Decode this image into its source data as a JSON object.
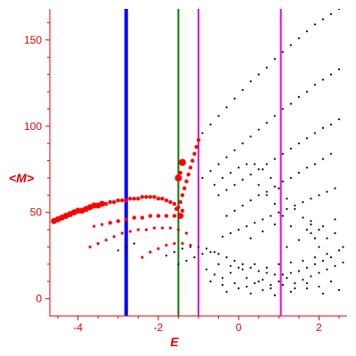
{
  "chart_data": {
    "type": "scatter",
    "xlabel": "E",
    "ylabel": "<M>",
    "xlim": [
      -4.7,
      2.7
    ],
    "ylim": [
      -10,
      168
    ],
    "x_ticks": [
      -4,
      -2,
      0,
      2
    ],
    "x_tick_labels": [
      "-4",
      "-2",
      "0",
      "2"
    ],
    "y_ticks": [
      0,
      50,
      100,
      150
    ],
    "y_tick_labels": [
      "0",
      "50",
      "100",
      "150"
    ],
    "grid": false,
    "colors": {
      "axis": "#e00000",
      "red_points": "#ff0000",
      "black_points": "#000000",
      "line_blue": "#0000ff",
      "line_green": "#008000",
      "line_magenta": "#e000e0"
    },
    "vertical_lines": [
      {
        "x": -2.8,
        "color": "#0000ff",
        "width": 4
      },
      {
        "x": -1.5,
        "color": "#008000",
        "width": 2
      },
      {
        "x": -1.0,
        "color": "#e000e0",
        "width": 2
      },
      {
        "x": 1.05,
        "color": "#e000e0",
        "width": 2
      }
    ],
    "red_series": [
      [
        -4.6,
        45
      ],
      [
        -4.5,
        46
      ],
      [
        -4.4,
        47
      ],
      [
        -4.3,
        48
      ],
      [
        -4.2,
        49
      ],
      [
        -4.1,
        50
      ],
      [
        -4.0,
        51
      ],
      [
        -3.9,
        51
      ],
      [
        -3.8,
        52
      ],
      [
        -3.7,
        53
      ],
      [
        -3.6,
        54
      ],
      [
        -3.5,
        54
      ],
      [
        -3.4,
        55
      ],
      [
        -3.3,
        55
      ],
      [
        -3.2,
        56
      ],
      [
        -3.1,
        56
      ],
      [
        -3.0,
        57
      ],
      [
        -2.9,
        57
      ],
      [
        -2.8,
        57
      ],
      [
        -2.7,
        58
      ],
      [
        -2.6,
        58
      ],
      [
        -2.5,
        58
      ],
      [
        -2.4,
        59
      ],
      [
        -2.3,
        59
      ],
      [
        -2.2,
        59
      ],
      [
        -2.1,
        59
      ],
      [
        -2.0,
        58
      ],
      [
        -1.9,
        58
      ],
      [
        -1.8,
        57
      ],
      [
        -1.7,
        56
      ],
      [
        -1.6,
        55
      ],
      [
        -1.5,
        53
      ],
      [
        -1.4,
        51
      ],
      [
        -3.6,
        42
      ],
      [
        -3.4,
        43
      ],
      [
        -3.2,
        44
      ],
      [
        -3.0,
        45
      ],
      [
        -2.8,
        46
      ],
      [
        -2.6,
        47
      ],
      [
        -2.4,
        47
      ],
      [
        -2.2,
        48
      ],
      [
        -2.0,
        48
      ],
      [
        -1.8,
        48
      ],
      [
        -1.6,
        48
      ],
      [
        -1.45,
        48
      ],
      [
        -3.7,
        30
      ],
      [
        -3.5,
        32
      ],
      [
        -3.3,
        34
      ],
      [
        -3.1,
        36
      ],
      [
        -2.9,
        38
      ],
      [
        -2.7,
        39
      ],
      [
        -2.5,
        40
      ],
      [
        -2.3,
        40
      ],
      [
        -2.1,
        41
      ],
      [
        -1.9,
        41
      ],
      [
        -1.7,
        41
      ],
      [
        -1.5,
        40
      ],
      [
        -1.3,
        38
      ],
      [
        -2.4,
        24
      ],
      [
        -2.2,
        27
      ],
      [
        -2.0,
        29
      ],
      [
        -1.8,
        31
      ],
      [
        -1.6,
        32
      ],
      [
        -1.4,
        32
      ],
      [
        -1.2,
        31
      ],
      [
        -1.55,
        52
      ],
      [
        -1.45,
        56
      ],
      [
        -1.4,
        60
      ],
      [
        -1.35,
        64
      ],
      [
        -1.3,
        68
      ],
      [
        -1.25,
        72
      ],
      [
        -1.2,
        76
      ],
      [
        -1.15,
        80
      ],
      [
        -1.1,
        84
      ],
      [
        -1.05,
        88
      ],
      [
        -1.0,
        92
      ],
      [
        -1.5,
        70
      ],
      [
        -1.4,
        79
      ],
      [
        -1.45,
        73
      ]
    ],
    "black_series": [
      [
        -0.9,
        96
      ],
      [
        -0.7,
        101
      ],
      [
        -0.5,
        106
      ],
      [
        -0.3,
        111
      ],
      [
        -0.1,
        116
      ],
      [
        0.1,
        121
      ],
      [
        0.3,
        126
      ],
      [
        0.5,
        130
      ],
      [
        0.7,
        134
      ],
      [
        0.9,
        139
      ],
      [
        1.1,
        143
      ],
      [
        1.3,
        147
      ],
      [
        1.5,
        151
      ],
      [
        1.7,
        155
      ],
      [
        1.9,
        159
      ],
      [
        2.1,
        162
      ],
      [
        2.3,
        165
      ],
      [
        2.5,
        168
      ],
      [
        -0.9,
        70
      ],
      [
        -0.7,
        74
      ],
      [
        -0.5,
        78
      ],
      [
        -0.3,
        82
      ],
      [
        -0.1,
        86
      ],
      [
        0.1,
        90
      ],
      [
        0.3,
        94
      ],
      [
        0.5,
        98
      ],
      [
        0.7,
        102
      ],
      [
        0.9,
        106
      ],
      [
        1.1,
        110
      ],
      [
        1.3,
        113
      ],
      [
        1.5,
        117
      ],
      [
        1.7,
        120
      ],
      [
        1.9,
        124
      ],
      [
        2.1,
        127
      ],
      [
        2.3,
        130
      ],
      [
        2.5,
        133
      ],
      [
        -0.5,
        60
      ],
      [
        -0.3,
        63
      ],
      [
        -0.1,
        66
      ],
      [
        0.1,
        69
      ],
      [
        0.3,
        72
      ],
      [
        0.5,
        75
      ],
      [
        0.7,
        78
      ],
      [
        0.9,
        81
      ],
      [
        1.1,
        84
      ],
      [
        1.3,
        87
      ],
      [
        1.5,
        90
      ],
      [
        1.7,
        93
      ],
      [
        1.9,
        96
      ],
      [
        2.1,
        99
      ],
      [
        2.3,
        101
      ],
      [
        2.5,
        104
      ],
      [
        -0.3,
        48
      ],
      [
        -0.1,
        51
      ],
      [
        0.1,
        54
      ],
      [
        0.3,
        57
      ],
      [
        0.5,
        60
      ],
      [
        0.7,
        62
      ],
      [
        0.9,
        65
      ],
      [
        1.1,
        68
      ],
      [
        1.3,
        70
      ],
      [
        1.5,
        73
      ],
      [
        1.7,
        76
      ],
      [
        1.9,
        78
      ],
      [
        2.1,
        81
      ],
      [
        2.3,
        84
      ],
      [
        -0.6,
        66
      ],
      [
        -0.4,
        70
      ],
      [
        -0.2,
        73
      ],
      [
        0.0,
        76
      ],
      [
        0.2,
        78
      ],
      [
        0.4,
        78
      ],
      [
        0.6,
        75
      ],
      [
        0.8,
        70
      ],
      [
        1.0,
        64
      ],
      [
        1.2,
        58
      ],
      [
        1.4,
        52
      ],
      [
        1.6,
        47
      ],
      [
        1.8,
        43
      ],
      [
        2.0,
        40
      ],
      [
        -0.4,
        36
      ],
      [
        -0.2,
        38
      ],
      [
        0.0,
        40
      ],
      [
        0.2,
        42
      ],
      [
        0.4,
        44
      ],
      [
        0.6,
        46
      ],
      [
        0.8,
        48
      ],
      [
        1.0,
        50
      ],
      [
        1.2,
        52
      ],
      [
        1.4,
        54
      ],
      [
        1.6,
        56
      ],
      [
        1.8,
        58
      ],
      [
        2.0,
        60
      ],
      [
        2.2,
        62
      ],
      [
        2.4,
        64
      ],
      [
        -1.5,
        20
      ],
      [
        -1.3,
        22
      ],
      [
        -1.1,
        24
      ],
      [
        -0.9,
        26
      ],
      [
        -0.7,
        27
      ],
      [
        -0.5,
        26
      ],
      [
        -0.3,
        24
      ],
      [
        -0.1,
        22
      ],
      [
        0.1,
        20
      ],
      [
        0.3,
        18
      ],
      [
        0.5,
        16
      ],
      [
        0.7,
        15
      ],
      [
        0.9,
        14
      ],
      [
        1.1,
        14
      ],
      [
        1.3,
        15
      ],
      [
        1.5,
        16
      ],
      [
        1.7,
        18
      ],
      [
        1.9,
        20
      ],
      [
        2.1,
        22
      ],
      [
        2.3,
        24
      ],
      [
        -1.8,
        25
      ],
      [
        -1.6,
        27
      ],
      [
        -1.4,
        29
      ],
      [
        -1.2,
        30
      ],
      [
        -1.0,
        30
      ],
      [
        -0.8,
        29
      ],
      [
        -0.6,
        27
      ],
      [
        -3.0,
        28
      ],
      [
        -2.8,
        30
      ],
      [
        -2.6,
        32
      ],
      [
        -0.8,
        17
      ],
      [
        -0.6,
        14
      ],
      [
        -0.4,
        12
      ],
      [
        -0.2,
        15
      ],
      [
        0.0,
        18
      ],
      [
        0.2,
        12
      ],
      [
        0.4,
        9
      ],
      [
        0.6,
        11
      ],
      [
        0.8,
        8
      ],
      [
        1.0,
        10
      ],
      [
        1.2,
        12
      ],
      [
        1.4,
        9
      ],
      [
        1.6,
        11
      ],
      [
        1.8,
        13
      ],
      [
        2.0,
        15
      ],
      [
        2.2,
        17
      ],
      [
        2.4,
        19
      ],
      [
        2.6,
        21
      ],
      [
        -0.5,
        20
      ],
      [
        -0.2,
        19
      ],
      [
        0.1,
        17
      ],
      [
        0.4,
        20
      ],
      [
        0.7,
        18
      ],
      [
        1.0,
        20
      ],
      [
        1.3,
        21
      ],
      [
        1.6,
        22
      ],
      [
        1.9,
        24
      ],
      [
        2.2,
        26
      ],
      [
        2.5,
        28
      ],
      [
        -0.3,
        4
      ],
      [
        0.0,
        6
      ],
      [
        0.3,
        3
      ],
      [
        0.6,
        5
      ],
      [
        0.9,
        2
      ],
      [
        1.3,
        4
      ],
      [
        1.7,
        6
      ],
      [
        2.1,
        3
      ],
      [
        2.5,
        5
      ],
      [
        -0.7,
        10
      ],
      [
        -0.4,
        8
      ],
      [
        -0.1,
        9
      ],
      [
        0.2,
        7
      ],
      [
        0.5,
        10
      ],
      [
        0.8,
        6
      ],
      [
        1.1,
        8
      ],
      [
        1.4,
        6
      ],
      [
        1.7,
        9
      ],
      [
        2.0,
        7
      ],
      [
        2.3,
        10
      ],
      [
        0.3,
        35
      ],
      [
        0.6,
        39
      ],
      [
        0.9,
        43
      ],
      [
        1.2,
        30
      ],
      [
        1.5,
        34
      ],
      [
        1.8,
        38
      ],
      [
        2.1,
        42
      ],
      [
        2.4,
        46
      ],
      [
        1.7,
        40
      ],
      [
        1.8,
        45
      ],
      [
        1.9,
        35
      ],
      [
        2.0,
        30
      ],
      [
        2.2,
        35
      ],
      [
        2.4,
        38
      ],
      [
        2.6,
        30
      ],
      [
        0.5,
        66
      ],
      [
        0.7,
        60
      ],
      [
        0.9,
        55
      ],
      [
        1.1,
        48
      ],
      [
        1.3,
        42
      ]
    ]
  }
}
